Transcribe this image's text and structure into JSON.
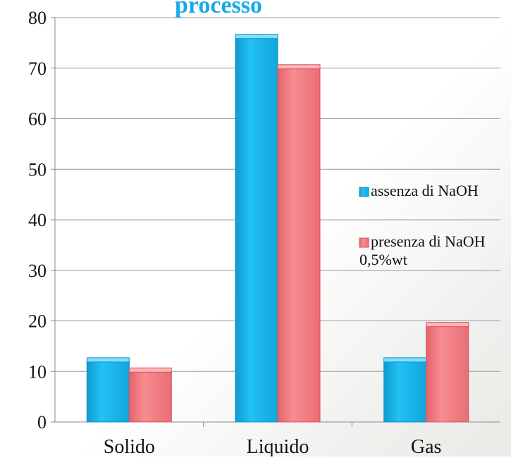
{
  "chart_data": {
    "type": "bar",
    "title": "processo",
    "categories": [
      "Solido",
      "Liquido",
      "Gas"
    ],
    "series": [
      {
        "name": "assenza di NaOH",
        "values": [
          12,
          76,
          12
        ]
      },
      {
        "name": "presenza di NaOH 0,5%wt",
        "values": [
          10,
          70,
          19
        ]
      }
    ],
    "ylim": [
      0,
      80
    ],
    "yticks": [
      "0",
      "10",
      "20",
      "30",
      "40",
      "50",
      "60",
      "70",
      "80"
    ],
    "grid": true,
    "legend_position": "right",
    "colors": {
      "series_1": "#19b7ee",
      "series_2": "#f07a80",
      "title": "#19a9e6"
    }
  }
}
